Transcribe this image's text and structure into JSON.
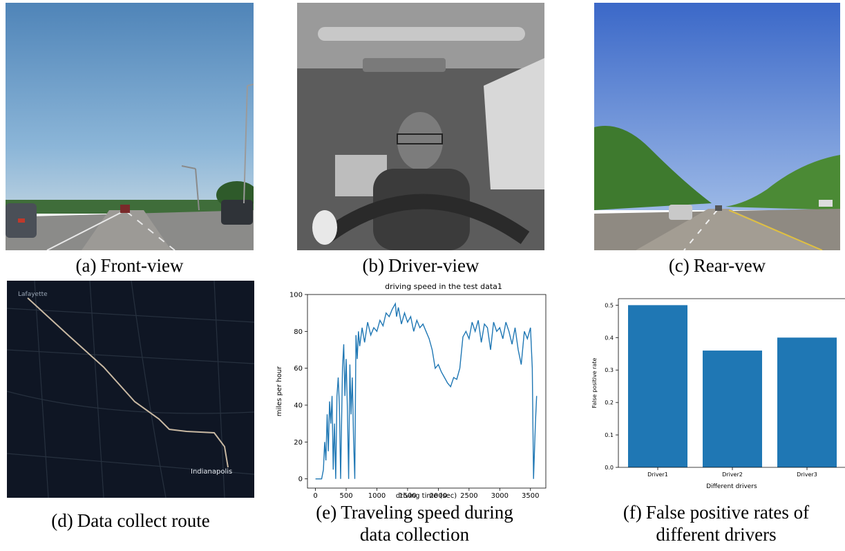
{
  "panels": {
    "a": {
      "tag": "(a)",
      "label": "Front-view"
    },
    "b": {
      "tag": "(b)",
      "label": "Driver-view"
    },
    "c": {
      "tag": "(c)",
      "label": "Rear-vew"
    },
    "d": {
      "tag": "(d)",
      "label": "Data collect route",
      "map_labels": {
        "top": "Lafayette",
        "bottom": "Indianapolis"
      }
    },
    "e": {
      "tag": "(e)",
      "line1": "Traveling speed during",
      "line2": "data collection"
    },
    "f": {
      "tag": "(f)",
      "line1": "False positive rates of",
      "line2": "different drivers"
    }
  },
  "chart_data": [
    {
      "type": "line",
      "title": "driving speed in the test data1",
      "xlabel": "driving time (sec)",
      "ylabel": "miles per hour",
      "xlim": [
        -130,
        3750
      ],
      "ylim": [
        -5,
        100
      ],
      "xticks": [
        0,
        500,
        1000,
        1500,
        2000,
        2500,
        3000,
        3500
      ],
      "yticks": [
        0,
        20,
        40,
        60,
        80,
        100
      ],
      "color": "#1f77b4",
      "series": [
        {
          "x": [
            0,
            100,
            130,
            150,
            170,
            190,
            210,
            230,
            250,
            270,
            290,
            310,
            330,
            350,
            370,
            390,
            410,
            440,
            460,
            480,
            500,
            520,
            540,
            560,
            580,
            600,
            620,
            640,
            660,
            680,
            700,
            720,
            760,
            800,
            850,
            900,
            950,
            1000,
            1050,
            1100,
            1150,
            1200,
            1250,
            1300,
            1320,
            1350,
            1400,
            1450,
            1500,
            1550,
            1600,
            1650,
            1700,
            1750,
            1800,
            1850,
            1900,
            1950,
            2000,
            2050,
            2100,
            2150,
            2200,
            2250,
            2300,
            2350,
            2400,
            2450,
            2500,
            2550,
            2600,
            2650,
            2700,
            2750,
            2800,
            2850,
            2900,
            2950,
            3000,
            3050,
            3100,
            3150,
            3200,
            3250,
            3300,
            3350,
            3400,
            3450,
            3500,
            3530,
            3550,
            3580,
            3600
          ],
          "y": [
            0,
            0,
            5,
            20,
            10,
            35,
            15,
            42,
            30,
            45,
            5,
            30,
            0,
            45,
            55,
            40,
            0,
            60,
            73,
            45,
            65,
            38,
            0,
            62,
            35,
            55,
            22,
            0,
            78,
            65,
            80,
            72,
            82,
            74,
            85,
            78,
            82,
            80,
            86,
            83,
            90,
            88,
            92,
            95,
            88,
            93,
            84,
            90,
            85,
            88,
            80,
            86,
            82,
            84,
            80,
            76,
            70,
            60,
            62,
            58,
            55,
            52,
            50,
            55,
            54,
            60,
            77,
            80,
            76,
            85,
            80,
            86,
            74,
            84,
            82,
            70,
            85,
            80,
            82,
            76,
            85,
            80,
            73,
            82,
            70,
            62,
            80,
            76,
            82,
            60,
            0,
            30,
            45
          ]
        }
      ]
    },
    {
      "type": "bar",
      "xlabel": "Different drivers",
      "ylabel": "False positive rate",
      "categories": [
        "Driver1",
        "Driver2",
        "Driver3"
      ],
      "values": [
        0.5,
        0.36,
        0.4
      ],
      "ylim": [
        0,
        0.52
      ],
      "yticks": [
        0.0,
        0.1,
        0.2,
        0.3,
        0.4,
        0.5
      ],
      "color": "#1f77b4"
    }
  ]
}
